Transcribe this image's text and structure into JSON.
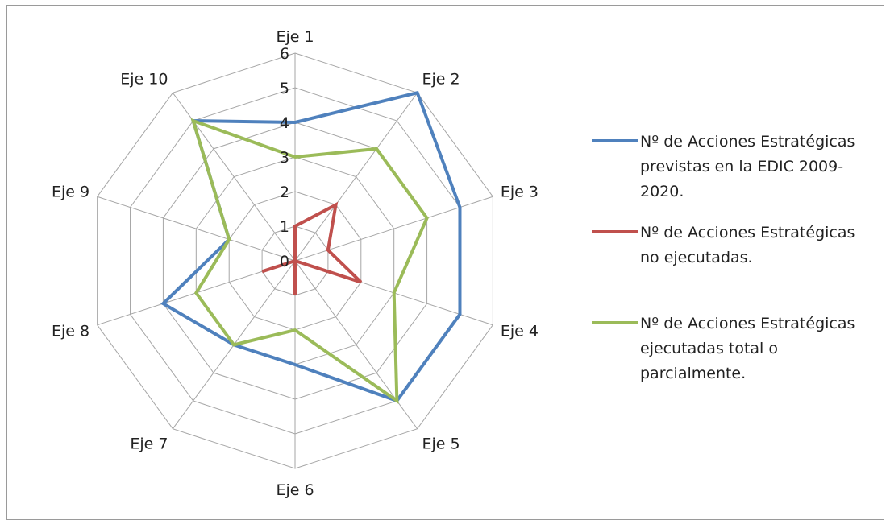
{
  "chart_data": {
    "type": "radar",
    "categories": [
      "Eje 1",
      "Eje 2",
      "Eje 3",
      "Eje 4",
      "Eje 5",
      "Eje 6",
      "Eje 7",
      "Eje 8",
      "Eje 9",
      "Eje 10"
    ],
    "rlim": [
      0,
      6
    ],
    "ticks": [
      "0",
      "1",
      "2",
      "3",
      "4",
      "5",
      "6"
    ],
    "grid": true,
    "legend_position": "right",
    "series": [
      {
        "name_lines": [
          "Nº de Acciones Estratégicas",
          "previstas en la EDIC 2009-",
          "2020."
        ],
        "color": "#4f81bd",
        "values": [
          4,
          6,
          5,
          5,
          5,
          3,
          3,
          4,
          2,
          5
        ]
      },
      {
        "name_lines": [
          "Nº de Acciones Estratégicas",
          "no  ejecutadas."
        ],
        "color": "#c0504d",
        "values": [
          1,
          2,
          1,
          2,
          0,
          1,
          0,
          1,
          0,
          0
        ]
      },
      {
        "name_lines": [
          "Nº de Acciones Estratégicas",
          "ejecutadas total o",
          "parcialmente."
        ],
        "color": "#9bbb59",
        "values": [
          3,
          4,
          4,
          3,
          5,
          2,
          3,
          3,
          2,
          5
        ]
      }
    ]
  }
}
